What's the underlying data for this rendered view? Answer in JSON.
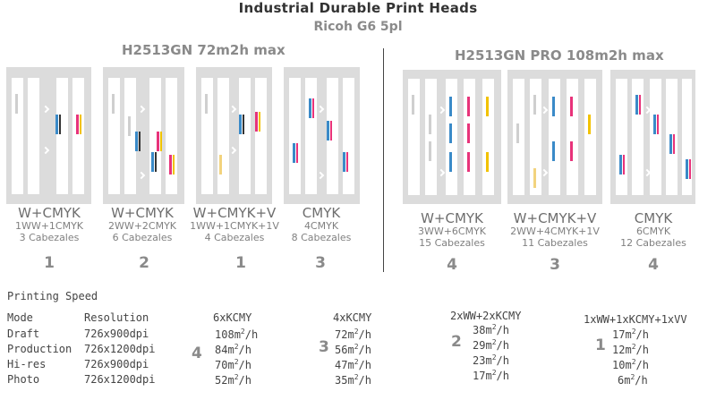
{
  "header": {
    "title": "Industrial Durable Print Heads",
    "subtitle": "Ricoh G6   5pl"
  },
  "groups": [
    {
      "title": "H2513GN 72m2h max"
    },
    {
      "title": "H2513GN PRO 108m2h max"
    }
  ],
  "configs": [
    {
      "name": "W+CMYK",
      "detail": "1WW+1CMYK",
      "heads": "3 Cabezales",
      "number": "1"
    },
    {
      "name": "W+CMYK",
      "detail": "2WW+2CMYK",
      "heads": "6 Cabezales",
      "number": "2"
    },
    {
      "name": "W+CMYK+V",
      "detail": "1WW+1CMYK+1V",
      "heads": "4 Cabezales",
      "number": "1"
    },
    {
      "name": "CMYK",
      "detail": "4CMYK",
      "heads": "8 Cabezales",
      "number": "3"
    },
    {
      "name": "W+CMYK",
      "detail": "3WW+6CMYK",
      "heads": "15 Cabezales",
      "number": "4"
    },
    {
      "name": "W+CMYK+V",
      "detail": "2WW+4CMYK+1V",
      "heads": "11 Cabezales",
      "number": "3"
    },
    {
      "name": "CMYK",
      "detail": "6CMYK",
      "heads": "12 Cabezales",
      "number": "4"
    }
  ],
  "speed": {
    "title": "Printing Speed",
    "header_mode": "Mode",
    "header_resolution": "Resolution",
    "rows": [
      {
        "mode": "Draft",
        "resolution": "726x900dpi"
      },
      {
        "mode": "Production",
        "resolution": "726x1200dpi"
      },
      {
        "mode": "Hi-res",
        "resolution": "726x900dpi"
      },
      {
        "mode": "Photo",
        "resolution": "726x1200dpi"
      }
    ],
    "columns": [
      {
        "header": "6xKCMY",
        "number": "4",
        "values": [
          "108",
          "84",
          "70",
          "52"
        ]
      },
      {
        "header": "4xKCMY",
        "number": "3",
        "values": [
          "72",
          "56",
          "47",
          "35"
        ]
      },
      {
        "header": "2xWW+2xKCMY",
        "number": "2",
        "values": [
          "38",
          "29",
          "23",
          "17"
        ]
      },
      {
        "header": "1xWW+1xKCMY+1xVV",
        "number": "1",
        "values": [
          "17",
          "12",
          "10",
          "6"
        ]
      }
    ],
    "unit": "m",
    "unit_sup": "2",
    "unit_suffix": "/h"
  }
}
